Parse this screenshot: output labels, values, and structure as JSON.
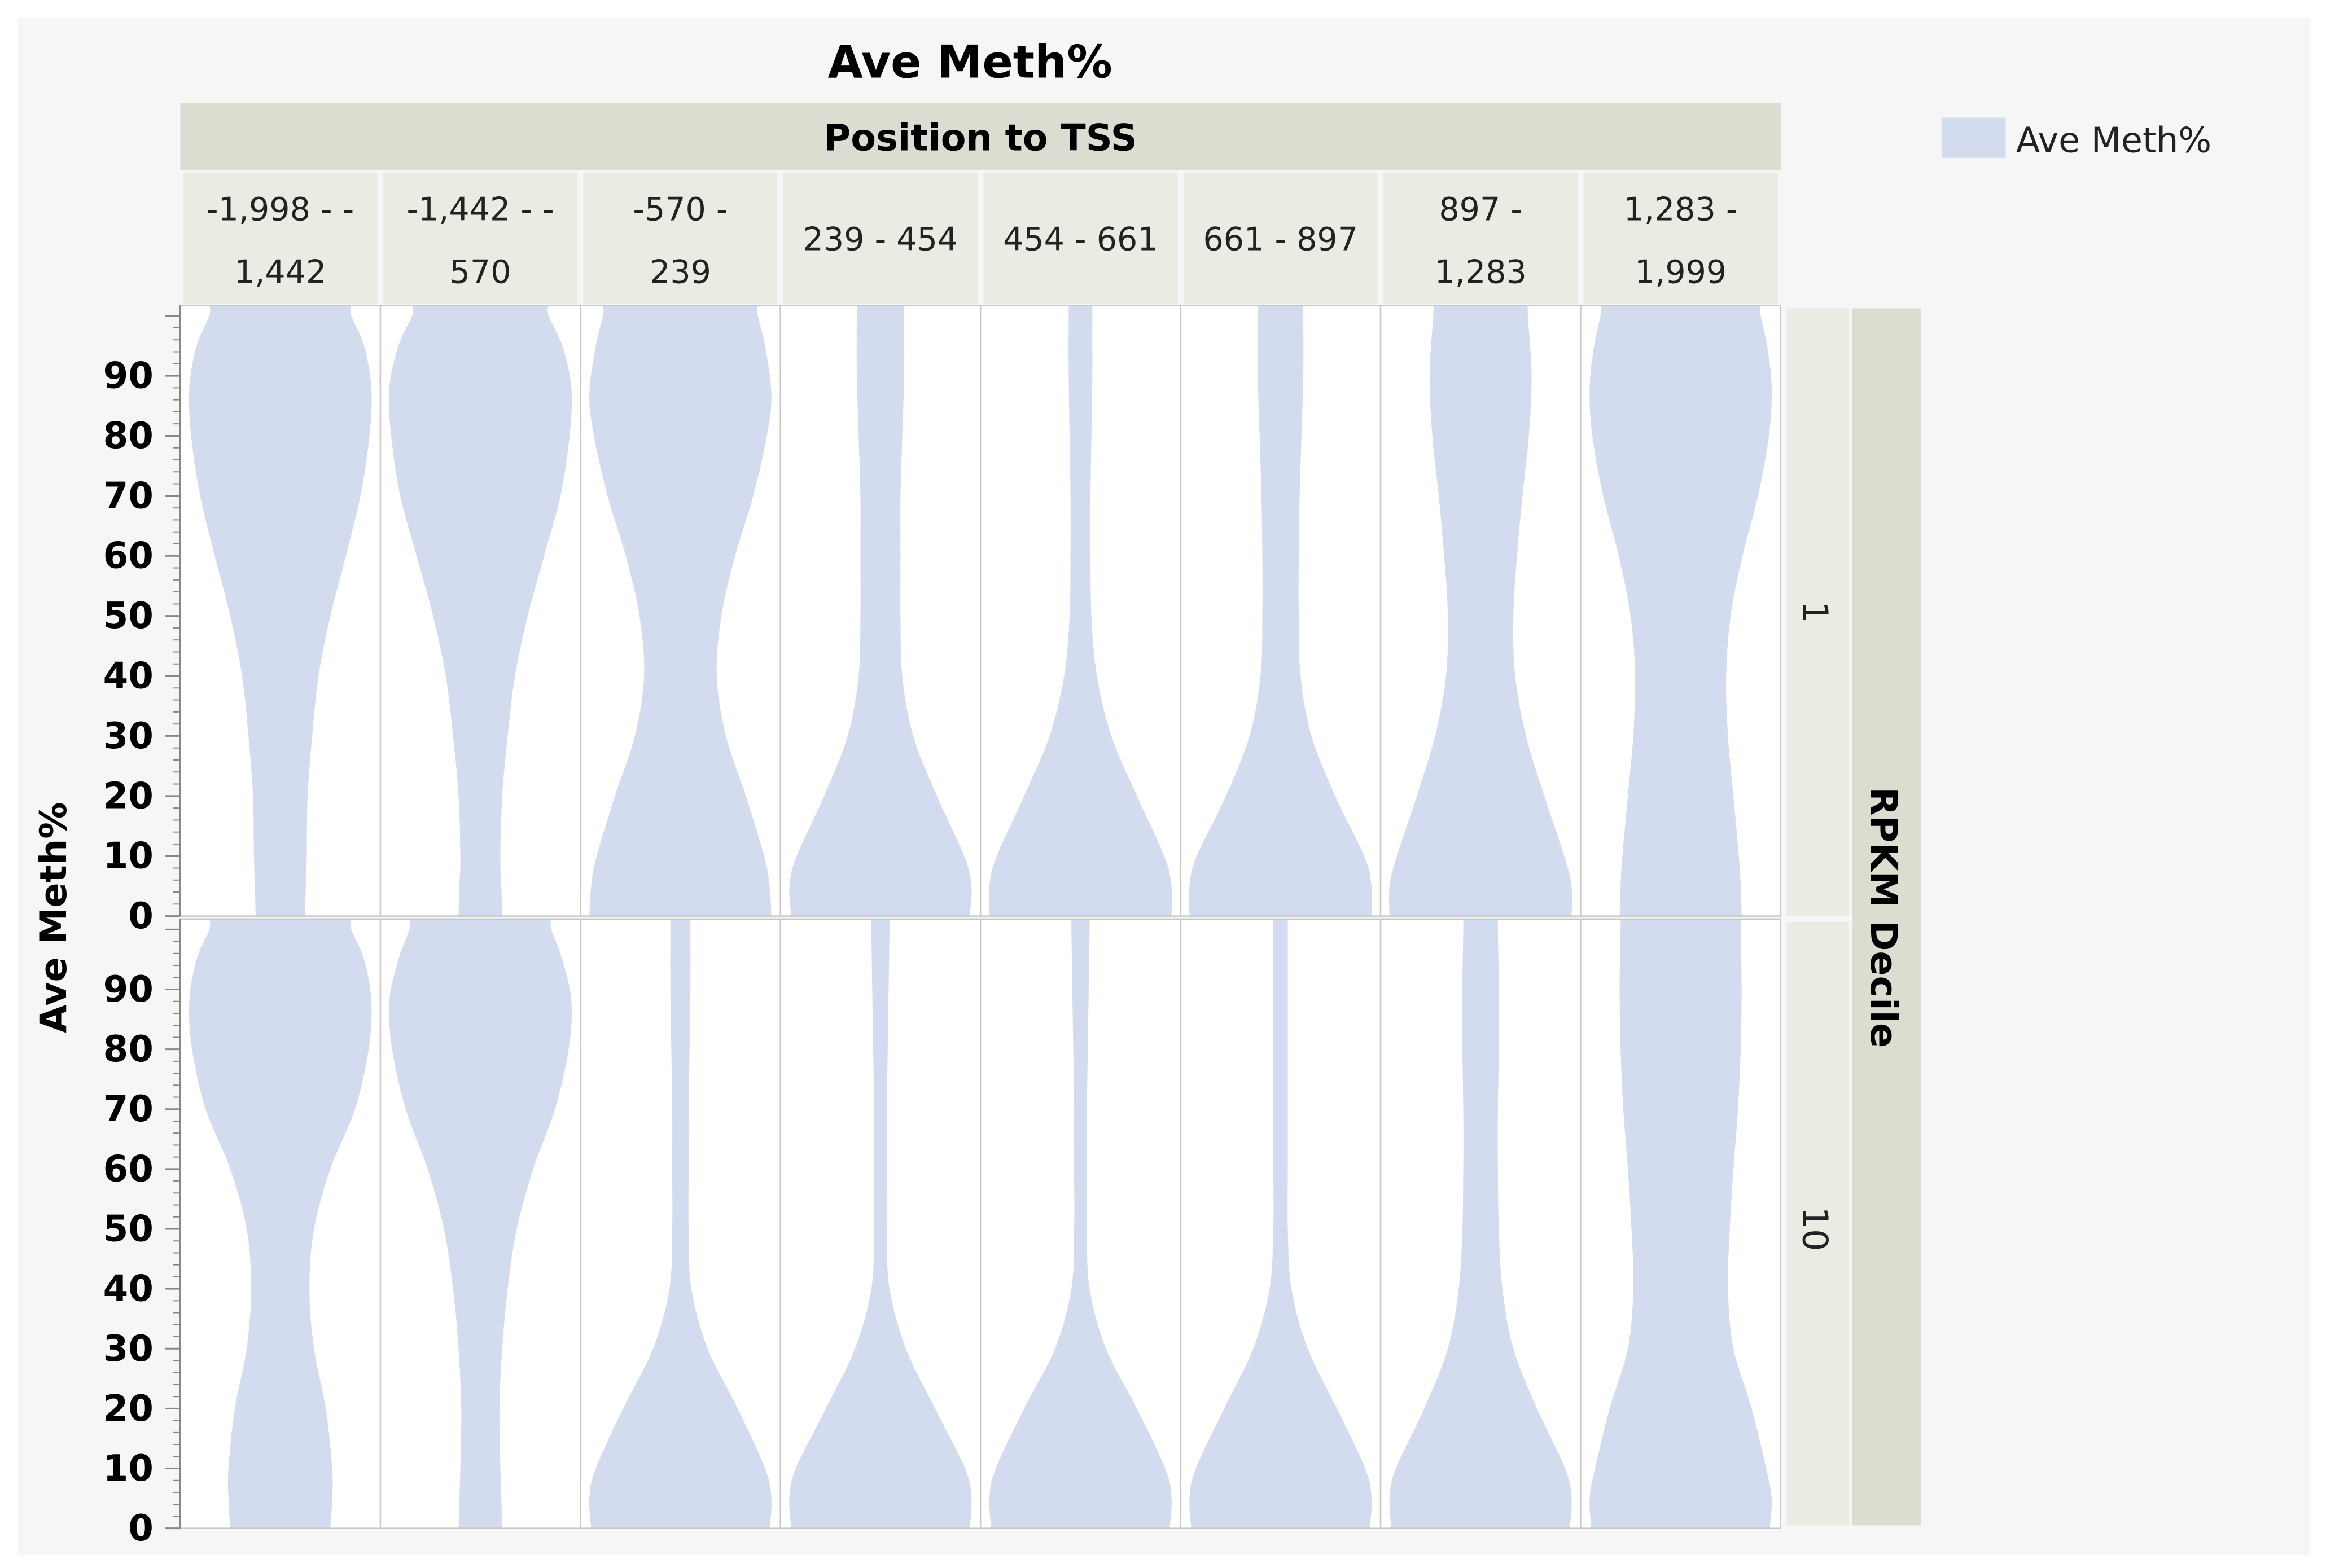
{
  "chart_data": {
    "type": "violin",
    "title": "Ave Meth%",
    "column_header": "Position to TSS",
    "row_header": "RPKM Decile",
    "ylabel": "Ave Meth%",
    "legend": {
      "label": "Ave Meth%",
      "placement": "top-right",
      "color": "#d3dbee"
    },
    "colors": {
      "violin": "#d3dbee",
      "header": "#dddcd0",
      "subheader": "#ebeae3",
      "panel_border": "#c8c8c8",
      "background": "#f6f6f6"
    },
    "ylim": [
      0,
      100
    ],
    "y_ticks": [
      "0",
      "10",
      "20",
      "30",
      "40",
      "50",
      "60",
      "70",
      "80",
      "90"
    ],
    "columns": [
      {
        "label_lines": [
          "-1,998 - -",
          "1,442"
        ]
      },
      {
        "label_lines": [
          "-1,442 - -",
          "570"
        ]
      },
      {
        "label_lines": [
          "-570 -",
          "239"
        ]
      },
      {
        "label_lines": [
          "239 - 454"
        ]
      },
      {
        "label_lines": [
          "454 - 661"
        ]
      },
      {
        "label_lines": [
          "661 - 897"
        ]
      },
      {
        "label_lines": [
          "897 -",
          "1,283"
        ]
      },
      {
        "label_lines": [
          "1,283 -",
          "1,999"
        ]
      }
    ],
    "rows": [
      {
        "label": "1",
        "violins": [
          [
            [
              0,
              0.27
            ],
            [
              5,
              0.28
            ],
            [
              10,
              0.29
            ],
            [
              20,
              0.3
            ],
            [
              30,
              0.35
            ],
            [
              40,
              0.42
            ],
            [
              50,
              0.55
            ],
            [
              60,
              0.72
            ],
            [
              70,
              0.88
            ],
            [
              80,
              0.98
            ],
            [
              88,
              1.0
            ],
            [
              95,
              0.92
            ],
            [
              100,
              0.78
            ]
          ],
          [
            [
              0,
              0.24
            ],
            [
              5,
              0.23
            ],
            [
              10,
              0.22
            ],
            [
              20,
              0.24
            ],
            [
              30,
              0.3
            ],
            [
              40,
              0.38
            ],
            [
              50,
              0.52
            ],
            [
              60,
              0.7
            ],
            [
              70,
              0.88
            ],
            [
              80,
              0.98
            ],
            [
              88,
              1.0
            ],
            [
              95,
              0.9
            ],
            [
              100,
              0.75
            ]
          ],
          [
            [
              0,
              1.0
            ],
            [
              5,
              0.98
            ],
            [
              10,
              0.92
            ],
            [
              20,
              0.72
            ],
            [
              30,
              0.5
            ],
            [
              40,
              0.4
            ],
            [
              50,
              0.45
            ],
            [
              60,
              0.6
            ],
            [
              70,
              0.8
            ],
            [
              80,
              0.95
            ],
            [
              87,
              1.0
            ],
            [
              95,
              0.93
            ],
            [
              100,
              0.85
            ]
          ],
          [
            [
              0,
              0.98
            ],
            [
              5,
              1.0
            ],
            [
              10,
              0.92
            ],
            [
              20,
              0.62
            ],
            [
              30,
              0.36
            ],
            [
              40,
              0.24
            ],
            [
              50,
              0.22
            ],
            [
              60,
              0.22
            ],
            [
              70,
              0.22
            ],
            [
              80,
              0.24
            ],
            [
              90,
              0.26
            ],
            [
              100,
              0.26
            ]
          ],
          [
            [
              0,
              1.0
            ],
            [
              5,
              1.0
            ],
            [
              10,
              0.92
            ],
            [
              20,
              0.62
            ],
            [
              30,
              0.34
            ],
            [
              40,
              0.18
            ],
            [
              50,
              0.12
            ],
            [
              60,
              0.11
            ],
            [
              70,
              0.11
            ],
            [
              80,
              0.12
            ],
            [
              90,
              0.13
            ],
            [
              100,
              0.13
            ]
          ],
          [
            [
              0,
              1.0
            ],
            [
              5,
              1.0
            ],
            [
              10,
              0.92
            ],
            [
              20,
              0.6
            ],
            [
              30,
              0.34
            ],
            [
              40,
              0.22
            ],
            [
              50,
              0.2
            ],
            [
              60,
              0.2
            ],
            [
              70,
              0.21
            ],
            [
              80,
              0.23
            ],
            [
              90,
              0.25
            ],
            [
              100,
              0.25
            ]
          ],
          [
            [
              0,
              1.0
            ],
            [
              5,
              1.0
            ],
            [
              10,
              0.92
            ],
            [
              20,
              0.7
            ],
            [
              30,
              0.5
            ],
            [
              40,
              0.38
            ],
            [
              50,
              0.36
            ],
            [
              60,
              0.4
            ],
            [
              70,
              0.46
            ],
            [
              80,
              0.53
            ],
            [
              90,
              0.56
            ],
            [
              100,
              0.52
            ]
          ],
          [
            [
              0,
              0.67
            ],
            [
              5,
              0.66
            ],
            [
              10,
              0.64
            ],
            [
              20,
              0.58
            ],
            [
              30,
              0.52
            ],
            [
              40,
              0.5
            ],
            [
              50,
              0.55
            ],
            [
              60,
              0.68
            ],
            [
              70,
              0.85
            ],
            [
              80,
              0.97
            ],
            [
              88,
              1.0
            ],
            [
              95,
              0.95
            ],
            [
              100,
              0.88
            ]
          ]
        ]
      },
      {
        "label": "10",
        "violins": [
          [
            [
              0,
              0.55
            ],
            [
              5,
              0.57
            ],
            [
              10,
              0.57
            ],
            [
              20,
              0.5
            ],
            [
              30,
              0.37
            ],
            [
              40,
              0.32
            ],
            [
              50,
              0.37
            ],
            [
              60,
              0.55
            ],
            [
              70,
              0.82
            ],
            [
              80,
              0.97
            ],
            [
              88,
              1.0
            ],
            [
              95,
              0.92
            ],
            [
              100,
              0.78
            ]
          ],
          [
            [
              0,
              0.24
            ],
            [
              5,
              0.23
            ],
            [
              10,
              0.22
            ],
            [
              20,
              0.21
            ],
            [
              30,
              0.24
            ],
            [
              40,
              0.3
            ],
            [
              50,
              0.4
            ],
            [
              60,
              0.58
            ],
            [
              70,
              0.82
            ],
            [
              80,
              0.97
            ],
            [
              88,
              1.0
            ],
            [
              95,
              0.9
            ],
            [
              100,
              0.78
            ]
          ],
          [
            [
              0,
              0.98
            ],
            [
              5,
              1.0
            ],
            [
              10,
              0.93
            ],
            [
              20,
              0.63
            ],
            [
              30,
              0.3
            ],
            [
              40,
              0.12
            ],
            [
              50,
              0.09
            ],
            [
              60,
              0.09
            ],
            [
              70,
              0.09
            ],
            [
              80,
              0.1
            ],
            [
              90,
              0.11
            ],
            [
              100,
              0.11
            ]
          ],
          [
            [
              0,
              0.98
            ],
            [
              5,
              1.0
            ],
            [
              10,
              0.93
            ],
            [
              20,
              0.6
            ],
            [
              30,
              0.28
            ],
            [
              40,
              0.1
            ],
            [
              50,
              0.07
            ],
            [
              60,
              0.07
            ],
            [
              70,
              0.07
            ],
            [
              80,
              0.08
            ],
            [
              90,
              0.09
            ],
            [
              100,
              0.1
            ]
          ],
          [
            [
              0,
              0.98
            ],
            [
              5,
              1.0
            ],
            [
              10,
              0.93
            ],
            [
              20,
              0.62
            ],
            [
              30,
              0.28
            ],
            [
              40,
              0.1
            ],
            [
              50,
              0.07
            ],
            [
              60,
              0.07
            ],
            [
              70,
              0.07
            ],
            [
              80,
              0.08
            ],
            [
              90,
              0.09
            ],
            [
              100,
              0.1
            ]
          ],
          [
            [
              0,
              0.98
            ],
            [
              5,
              1.0
            ],
            [
              10,
              0.93
            ],
            [
              20,
              0.62
            ],
            [
              30,
              0.3
            ],
            [
              40,
              0.12
            ],
            [
              50,
              0.08
            ],
            [
              60,
              0.08
            ],
            [
              70,
              0.08
            ],
            [
              80,
              0.08
            ],
            [
              90,
              0.08
            ],
            [
              100,
              0.08
            ]
          ],
          [
            [
              0,
              0.98
            ],
            [
              5,
              1.0
            ],
            [
              10,
              0.93
            ],
            [
              20,
              0.62
            ],
            [
              30,
              0.36
            ],
            [
              40,
              0.24
            ],
            [
              50,
              0.2
            ],
            [
              60,
              0.19
            ],
            [
              70,
              0.19
            ],
            [
              80,
              0.2
            ],
            [
              90,
              0.2
            ],
            [
              100,
              0.19
            ]
          ],
          [
            [
              0,
              0.98
            ],
            [
              5,
              1.0
            ],
            [
              10,
              0.94
            ],
            [
              20,
              0.78
            ],
            [
              30,
              0.58
            ],
            [
              40,
              0.52
            ],
            [
              50,
              0.54
            ],
            [
              60,
              0.58
            ],
            [
              70,
              0.63
            ],
            [
              80,
              0.66
            ],
            [
              90,
              0.67
            ],
            [
              100,
              0.66
            ]
          ]
        ]
      }
    ]
  }
}
